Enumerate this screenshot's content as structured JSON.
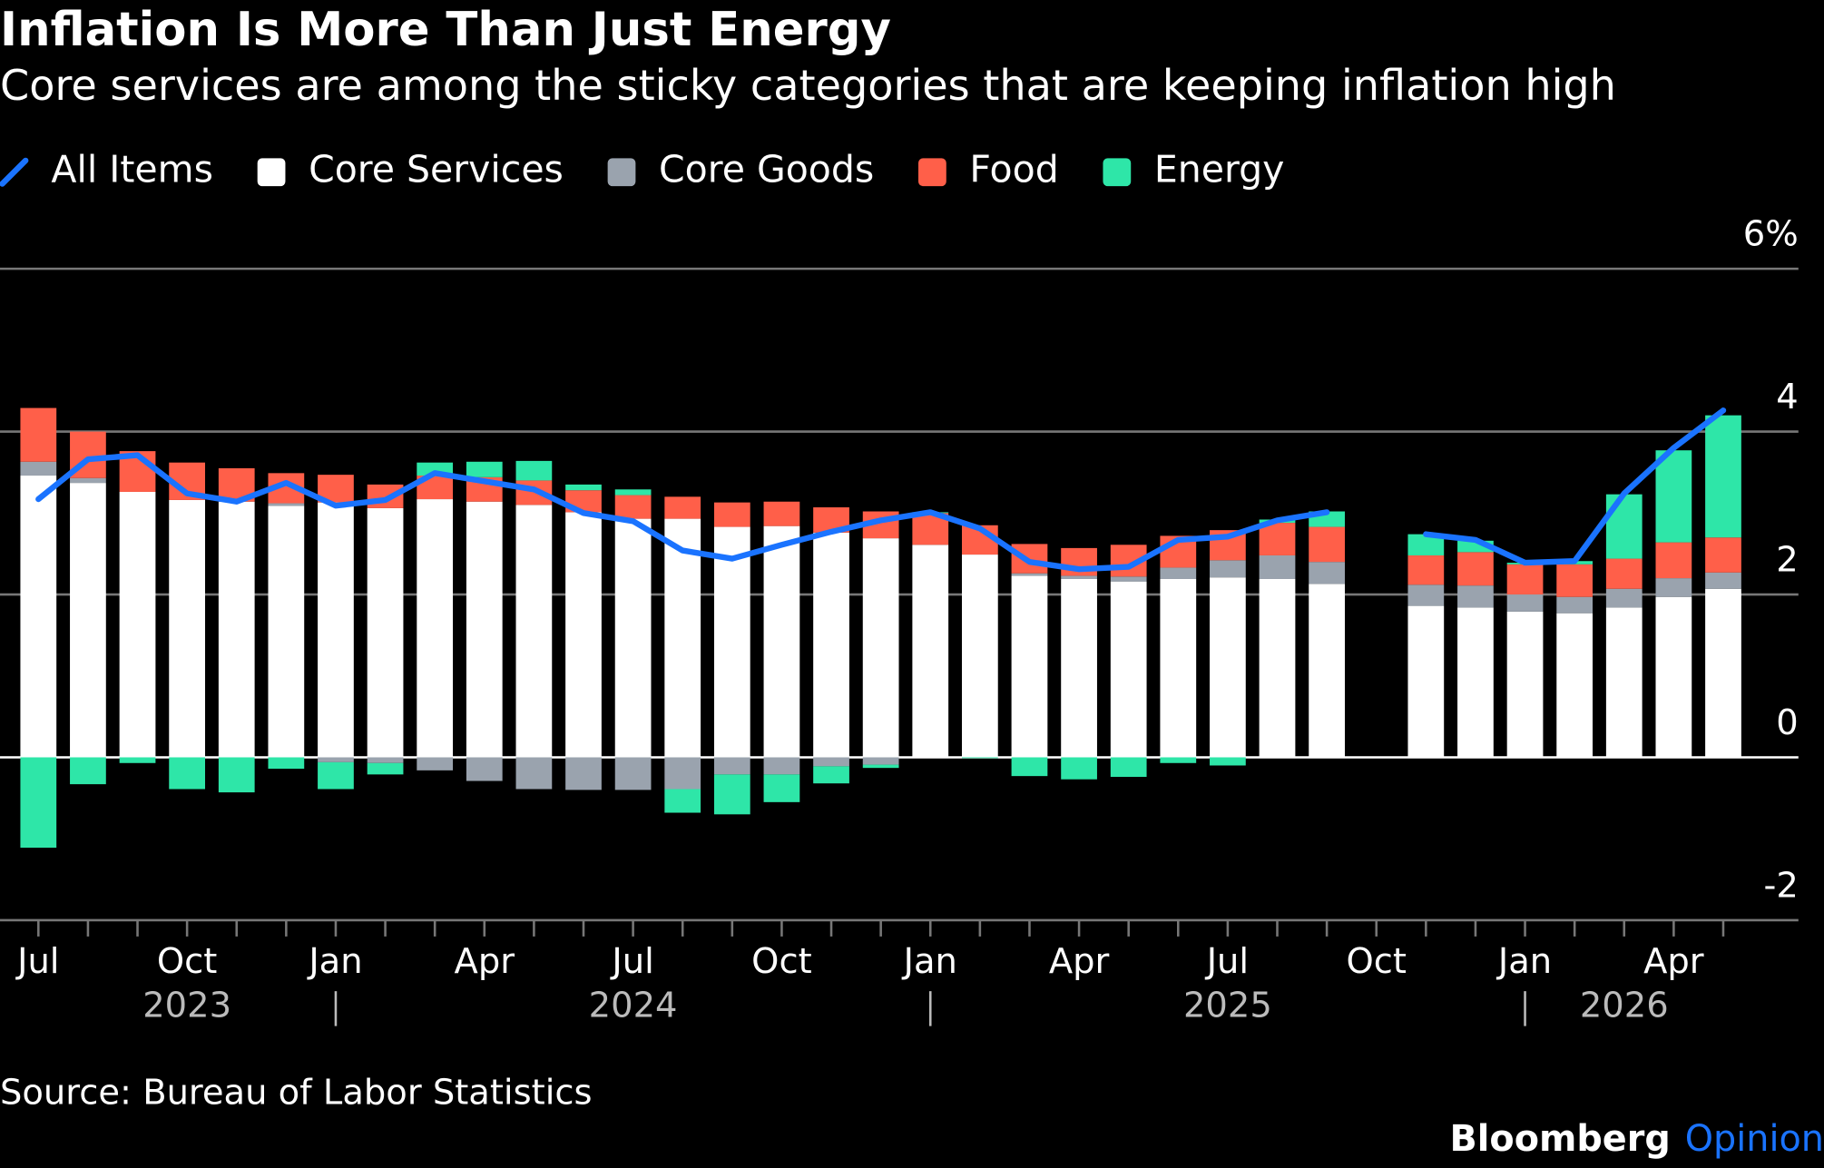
{
  "chart_data": {
    "type": "bar",
    "title": "Inflation Is More Than Just Energy",
    "subtitle": "Core services are among the sticky categories that are keeping inflation high",
    "source": "Source: Bureau of Labor Statistics",
    "brand": "Bloomberg",
    "brand_suffix": "Opinion",
    "categories": [
      "Jul",
      null,
      null,
      "Oct",
      null,
      null,
      "Jan",
      null,
      null,
      "Apr",
      null,
      null,
      "Jul",
      null,
      null,
      "Oct",
      null,
      null,
      "Jan",
      null,
      null,
      "Apr",
      null,
      null,
      "Jul",
      null,
      null,
      "Oct",
      null,
      null,
      "Jan",
      null,
      null,
      "Apr",
      null
    ],
    "years": [
      "2023",
      "2024",
      "2025",
      "2026"
    ],
    "ylim": [
      -2,
      6
    ],
    "yticks": [
      -2,
      0,
      2,
      4,
      {
        "value": 6,
        "label": "6%"
      }
    ],
    "grid": true,
    "series": [
      {
        "name": "All Items",
        "color": "#1a73ff",
        "type": "line",
        "values": [
          3.17,
          3.66,
          3.71,
          3.24,
          3.14,
          3.37,
          3.09,
          3.16,
          3.49,
          3.39,
          3.29,
          3.0,
          2.9,
          2.54,
          2.44,
          2.61,
          2.77,
          2.91,
          3.01,
          2.81,
          2.4,
          2.31,
          2.34,
          2.67,
          2.71,
          2.91,
          3.01,
          null,
          2.74,
          2.67,
          2.39,
          2.41,
          3.24,
          3.8,
          4.26
        ]
      },
      {
        "name": "Core Services",
        "color": "#ffffff",
        "values": [
          3.46,
          3.37,
          3.26,
          3.16,
          3.14,
          3.09,
          3.13,
          3.06,
          3.17,
          3.14,
          3.1,
          3.01,
          2.93,
          2.93,
          2.83,
          2.84,
          2.76,
          2.69,
          2.61,
          2.49,
          2.23,
          2.19,
          2.16,
          2.19,
          2.21,
          2.19,
          2.13,
          null,
          1.86,
          1.84,
          1.79,
          1.77,
          1.84,
          1.97,
          2.07
        ]
      },
      {
        "name": "Core Goods",
        "color": "#9aa3ae",
        "values": [
          0.17,
          0.06,
          0,
          0,
          0,
          0.03,
          -0.06,
          -0.07,
          -0.16,
          -0.29,
          -0.39,
          -0.4,
          -0.4,
          -0.39,
          -0.21,
          -0.21,
          -0.11,
          -0.09,
          0,
          0,
          0.03,
          0.04,
          0.06,
          0.14,
          0.21,
          0.29,
          0.27,
          null,
          0.26,
          0.27,
          0.21,
          0.2,
          0.23,
          0.23,
          0.2
        ]
      },
      {
        "name": "Food",
        "color": "#ff5f49",
        "values": [
          0.66,
          0.57,
          0.5,
          0.46,
          0.41,
          0.37,
          0.34,
          0.29,
          0.29,
          0.3,
          0.3,
          0.27,
          0.29,
          0.27,
          0.3,
          0.3,
          0.31,
          0.33,
          0.39,
          0.36,
          0.36,
          0.34,
          0.39,
          0.39,
          0.37,
          0.4,
          0.43,
          null,
          0.36,
          0.41,
          0.37,
          0.4,
          0.37,
          0.44,
          0.43
        ]
      },
      {
        "name": "Energy",
        "color": "#2ee6a8",
        "values": [
          -1.11,
          -0.33,
          -0.07,
          -0.39,
          -0.43,
          -0.14,
          -0.33,
          -0.14,
          0.16,
          0.19,
          0.24,
          0.07,
          0.07,
          -0.29,
          -0.49,
          -0.34,
          -0.21,
          -0.04,
          0.01,
          -0.01,
          -0.23,
          -0.27,
          -0.24,
          -0.07,
          -0.1,
          0.04,
          0.19,
          null,
          0.26,
          0.14,
          0.02,
          0.04,
          0.79,
          1.13,
          1.5
        ]
      }
    ]
  }
}
